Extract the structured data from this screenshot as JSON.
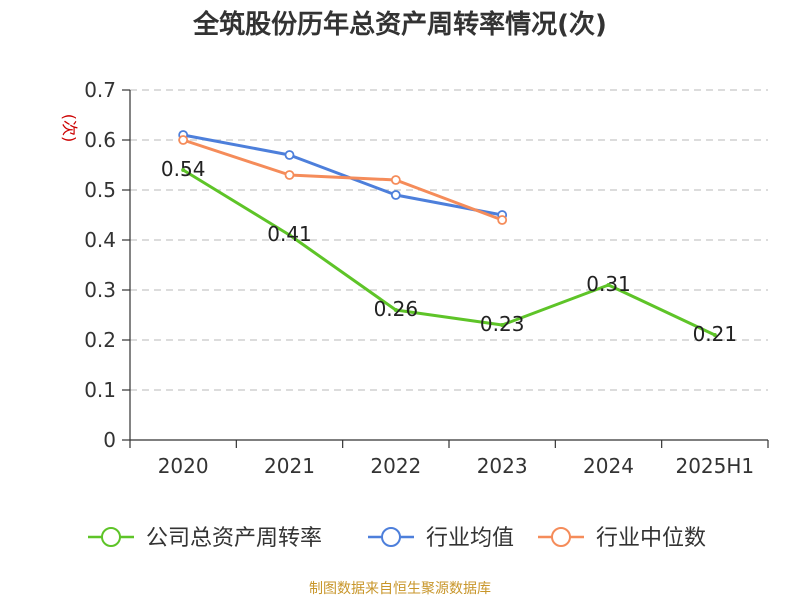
{
  "title": "全筑股份历年总资产周转率情况(次)",
  "source": "制图数据来自恒生聚源数据库",
  "chart_data": {
    "type": "line",
    "title": "全筑股份历年总资产周转率情况(次)",
    "ylabel": "(次)",
    "categories": [
      "2020",
      "2021",
      "2022",
      "2023",
      "2024",
      "2025H1"
    ],
    "ylim": [
      0,
      0.7
    ],
    "yticks": [
      "0",
      "0.1",
      "0.2",
      "0.3",
      "0.4",
      "0.5",
      "0.6",
      "0.7"
    ],
    "grid": true,
    "legend_position": "bottom",
    "series": [
      {
        "name": "公司总资产周转率",
        "color": "#5ec428",
        "values": [
          0.54,
          0.41,
          0.26,
          0.23,
          0.31,
          0.21
        ],
        "labels": [
          "0.54",
          "0.41",
          "0.26",
          "0.23",
          "0.31",
          "0.21"
        ],
        "show_labels": true,
        "markers": false
      },
      {
        "name": "行业均值",
        "color": "#4d7fdb",
        "values": [
          0.61,
          0.57,
          0.49,
          0.45,
          null,
          null
        ],
        "show_labels": false,
        "markers": true
      },
      {
        "name": "行业中位数",
        "color": "#f58c5a",
        "values": [
          0.6,
          0.53,
          0.52,
          0.44,
          null,
          null
        ],
        "show_labels": false,
        "markers": true
      }
    ]
  }
}
